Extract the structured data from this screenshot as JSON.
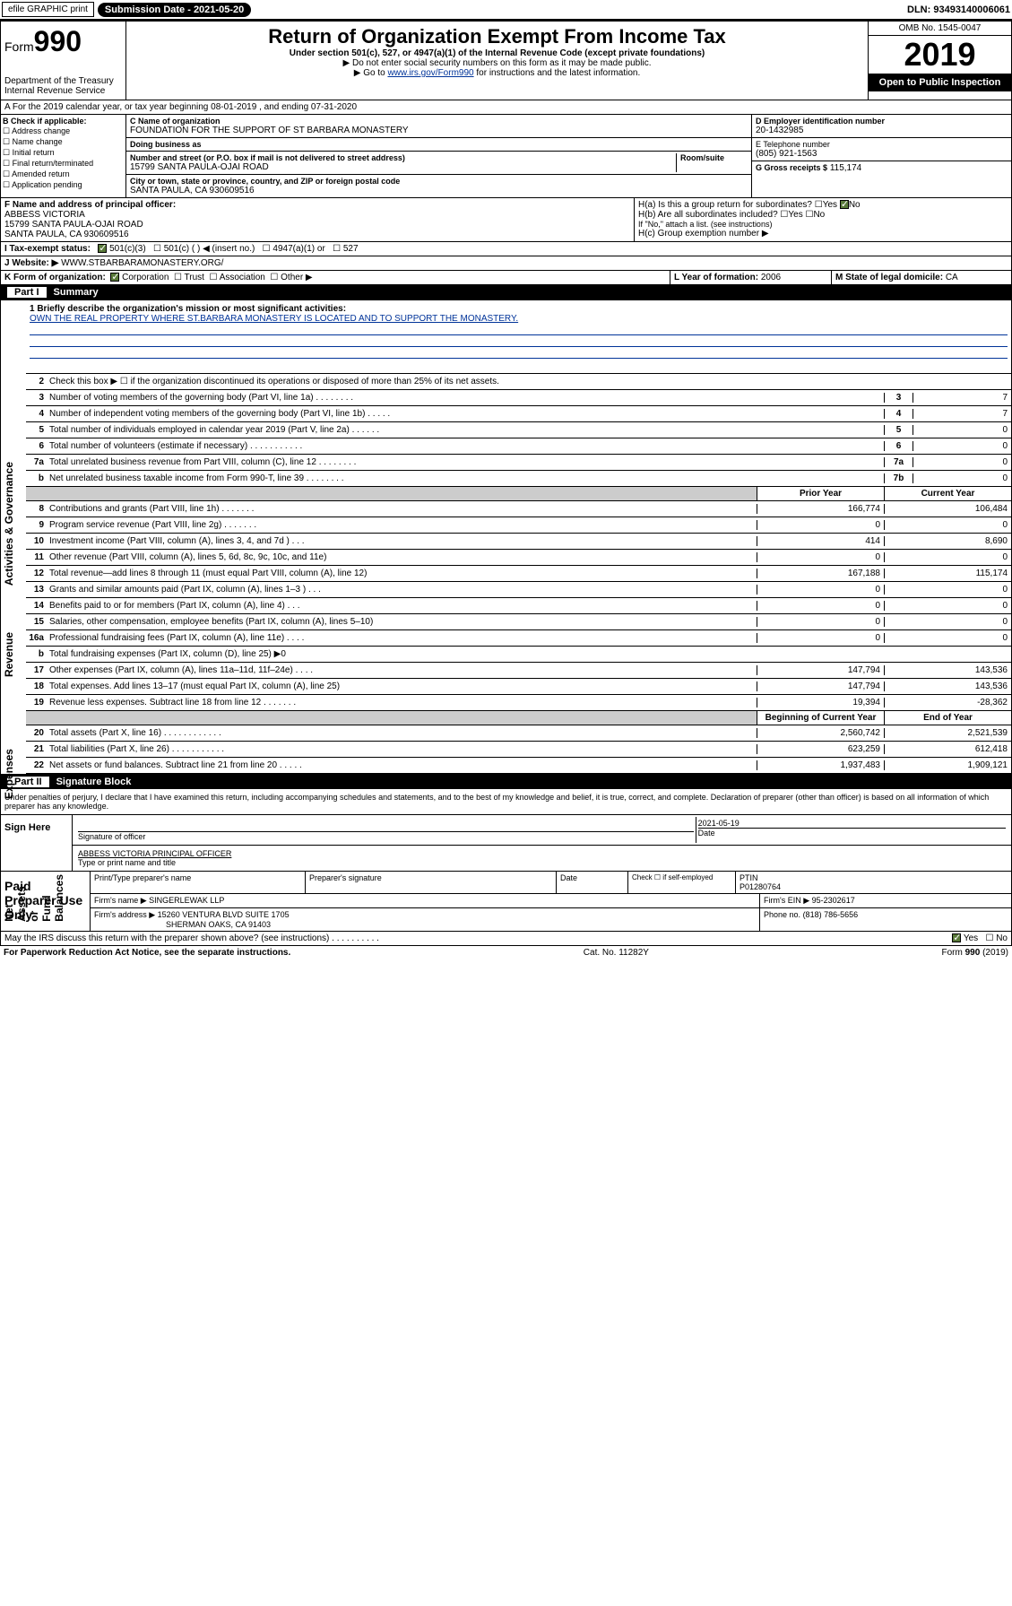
{
  "topbar": {
    "efile": "efile GRAPHIC print",
    "submission": "Submission Date - 2021-05-20",
    "dln": "DLN: 93493140006061"
  },
  "header": {
    "form": "Form",
    "form_num": "990",
    "dept": "Department of the Treasury",
    "irs": "Internal Revenue Service",
    "title": "Return of Organization Exempt From Income Tax",
    "subtitle": "Under section 501(c), 527, or 4947(a)(1) of the Internal Revenue Code (except private foundations)",
    "inst1": "▶ Do not enter social security numbers on this form as it may be made public.",
    "inst2": "▶ Go to www.irs.gov/Form990 for instructions and the latest information.",
    "omb": "OMB No. 1545-0047",
    "year": "2019",
    "open": "Open to Public Inspection"
  },
  "section_a": "A For the 2019 calendar year, or tax year beginning 08-01-2019    , and ending 07-31-2020",
  "col_b": {
    "label": "B Check if applicable:",
    "items": [
      "Address change",
      "Name change",
      "Initial return",
      "Final return/terminated",
      "Amended return",
      "Application pending"
    ]
  },
  "col_c": {
    "name_label": "C Name of organization",
    "name": "FOUNDATION FOR THE SUPPORT OF ST BARBARA MONASTERY",
    "dba_label": "Doing business as",
    "dba": "",
    "addr_label": "Number and street (or P.O. box if mail is not delivered to street address)",
    "addr": "15799 SANTA PAULA-OJAI ROAD",
    "room_label": "Room/suite",
    "city_label": "City or town, state or province, country, and ZIP or foreign postal code",
    "city": "SANTA PAULA, CA  930609516"
  },
  "col_d": {
    "ein_label": "D Employer identification number",
    "ein": "20-1432985",
    "phone_label": "E Telephone number",
    "phone": "(805) 921-1563",
    "gross_label": "G Gross receipts $",
    "gross": "115,174"
  },
  "col_f": {
    "label": "F  Name and address of principal officer:",
    "name": "ABBESS VICTORIA",
    "addr1": "15799 SANTA PAULA-OJAI ROAD",
    "addr2": "SANTA PAULA, CA  930609516"
  },
  "col_h": {
    "ha": "H(a)  Is this a group return for subordinates?",
    "hb": "H(b)  Are all subordinates included?",
    "hb_note": "If \"No,\" attach a list. (see instructions)",
    "hc": "H(c)  Group exemption number ▶"
  },
  "tax_exempt": {
    "label": "Tax-exempt status:",
    "opt1": "501(c)(3)",
    "opt2": "501(c) (  ) ◀ (insert no.)",
    "opt3": "4947(a)(1) or",
    "opt4": "527"
  },
  "website": {
    "label": "J Website: ▶",
    "url": "WWW.STBARBARAMONASTERY.ORG/"
  },
  "col_k": "K Form of organization:",
  "k_corp": "Corporation",
  "k_trust": "Trust",
  "k_assoc": "Association",
  "k_other": "Other ▶",
  "col_l": {
    "label": "L Year of formation:",
    "val": "2006"
  },
  "col_m": {
    "label": "M State of legal domicile:",
    "val": "CA"
  },
  "part1": {
    "title": "Summary",
    "line1_label": "1  Briefly describe the organization's mission or most significant activities:",
    "line1_text": "OWN THE REAL PROPERTY WHERE ST.BARBARA MONASTERY IS LOCATED AND TO SUPPORT THE MONASTERY.",
    "line2": "Check this box ▶ ☐  if the organization discontinued its operations or disposed of more than 25% of its net assets.",
    "lines_single": [
      {
        "n": "3",
        "d": "Number of voting members of the governing body (Part VI, line 1a)  .    .    .    .    .    .    .    .",
        "c": "3",
        "v": "7"
      },
      {
        "n": "4",
        "d": "Number of independent voting members of the governing body (Part VI, line 1b)   .    .    .    .    .",
        "c": "4",
        "v": "7"
      },
      {
        "n": "5",
        "d": "Total number of individuals employed in calendar year 2019 (Part V, line 2a)  .    .    .    .    .    .",
        "c": "5",
        "v": "0"
      },
      {
        "n": "6",
        "d": "Total number of volunteers (estimate if necessary)   .    .    .    .    .    .    .    .    .    .    .",
        "c": "6",
        "v": "0"
      },
      {
        "n": "7a",
        "d": "Total unrelated business revenue from Part VIII, column (C), line 12  .    .    .    .    .    .    .    .",
        "c": "7a",
        "v": "0"
      },
      {
        "n": "b",
        "d": "Net unrelated business taxable income from Form 990-T, line 39   .    .    .    .    .    .    .    .",
        "c": "7b",
        "v": "0"
      }
    ],
    "prior_year": "Prior Year",
    "current_year": "Current Year",
    "lines_two": [
      {
        "n": "8",
        "d": "Contributions and grants (Part VIII, line 1h)   .    .    .    .    .    .    .",
        "py": "166,774",
        "cy": "106,484"
      },
      {
        "n": "9",
        "d": "Program service revenue (Part VIII, line 2g)   .    .    .    .    .    .    .",
        "py": "0",
        "cy": "0"
      },
      {
        "n": "10",
        "d": "Investment income (Part VIII, column (A), lines 3, 4, and 7d )   .    .    .",
        "py": "414",
        "cy": "8,690"
      },
      {
        "n": "11",
        "d": "Other revenue (Part VIII, column (A), lines 5, 6d, 8c, 9c, 10c, and 11e)",
        "py": "0",
        "cy": "0"
      },
      {
        "n": "12",
        "d": "Total revenue—add lines 8 through 11 (must equal Part VIII, column (A), line 12)",
        "py": "167,188",
        "cy": "115,174"
      },
      {
        "n": "13",
        "d": "Grants and similar amounts paid (Part IX, column (A), lines 1–3 )  .    .    .",
        "py": "0",
        "cy": "0"
      },
      {
        "n": "14",
        "d": "Benefits paid to or for members (Part IX, column (A), line 4)  .    .    .",
        "py": "0",
        "cy": "0"
      },
      {
        "n": "15",
        "d": "Salaries, other compensation, employee benefits (Part IX, column (A), lines 5–10)",
        "py": "0",
        "cy": "0"
      },
      {
        "n": "16a",
        "d": "Professional fundraising fees (Part IX, column (A), line 11e)   .    .    .    .",
        "py": "0",
        "cy": "0"
      },
      {
        "n": "b",
        "d": "Total fundraising expenses (Part IX, column (D), line 25) ▶0",
        "py": "",
        "cy": "",
        "shaded": true
      },
      {
        "n": "17",
        "d": "Other expenses (Part IX, column (A), lines 11a–11d, 11f–24e)  .    .    .    .",
        "py": "147,794",
        "cy": "143,536"
      },
      {
        "n": "18",
        "d": "Total expenses. Add lines 13–17 (must equal Part IX, column (A), line 25)",
        "py": "147,794",
        "cy": "143,536"
      },
      {
        "n": "19",
        "d": "Revenue less expenses. Subtract line 18 from line 12  .    .    .    .    .    .    .",
        "py": "19,394",
        "cy": "-28,362"
      }
    ],
    "bocy": "Beginning of Current Year",
    "eoy": "End of Year",
    "lines_bal": [
      {
        "n": "20",
        "d": "Total assets (Part X, line 16)  .    .    .    .    .    .    .    .    .    .    .    .",
        "b": "2,560,742",
        "e": "2,521,539"
      },
      {
        "n": "21",
        "d": "Total liabilities (Part X, line 26)  .    .    .    .    .    .    .    .    .    .    .",
        "b": "623,259",
        "e": "612,418"
      },
      {
        "n": "22",
        "d": "Net assets or fund balances. Subtract line 21 from line 20  .    .    .    .    .",
        "b": "1,937,483",
        "e": "1,909,121"
      }
    ]
  },
  "part2": {
    "title": "Signature Block",
    "perjury": "Under penalties of perjury, I declare that I have examined this return, including accompanying schedules and statements, and to the best of my knowledge and belief, it is true, correct, and complete. Declaration of preparer (other than officer) is based on all information of which preparer has any knowledge.",
    "sign_here": "Sign Here",
    "sig_officer": "Signature of officer",
    "date": "Date",
    "date_val": "2021-05-19",
    "name_title": "ABBESS VICTORIA  PRINCIPAL OFFICER",
    "type_name": "Type or print name and title",
    "paid": "Paid Preparer Use Only",
    "prep_name_label": "Print/Type preparer's name",
    "prep_sig_label": "Preparer's signature",
    "check_self": "Check ☐  if self-employed",
    "ptin_label": "PTIN",
    "ptin": "P01280764",
    "firm_name_label": "Firm's name   ▶",
    "firm_name": "SINGERLEWAK LLP",
    "firm_ein_label": "Firm's EIN ▶",
    "firm_ein": "95-2302617",
    "firm_addr_label": "Firm's address ▶",
    "firm_addr1": "15260 VENTURA BLVD SUITE 1705",
    "firm_addr2": "SHERMAN OAKS, CA  91403",
    "phone_label": "Phone no.",
    "phone": "(818) 786-5656",
    "discuss": "May the IRS discuss this return with the preparer shown above? (see instructions)   .    .    .    .    .    .    .    .    .    ."
  },
  "footer": {
    "left": "For Paperwork Reduction Act Notice, see the separate instructions.",
    "center": "Cat. No. 11282Y",
    "right": "Form 990 (2019)"
  }
}
